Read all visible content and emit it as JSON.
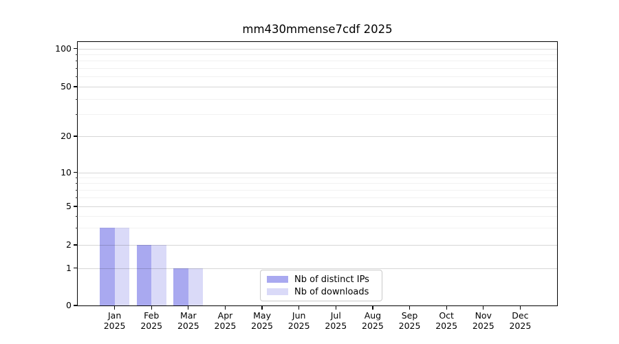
{
  "title": "mm430mmense7cdf 2025",
  "chart_data": {
    "type": "bar",
    "title": "mm430mmense7cdf 2025",
    "x_tick_months": [
      "Jan",
      "Feb",
      "Mar",
      "Apr",
      "May",
      "Jun",
      "Jul",
      "Aug",
      "Sep",
      "Oct",
      "Nov",
      "Dec"
    ],
    "x_tick_year": "2025",
    "series": [
      {
        "name": "Nb of distinct IPs",
        "color": "#a9a9f0",
        "values": [
          3,
          2,
          1,
          0,
          0,
          0,
          0,
          0,
          0,
          0,
          0,
          0
        ]
      },
      {
        "name": "Nb of downloads",
        "color": "#dadaf8",
        "values": [
          3,
          2,
          1,
          0,
          0,
          0,
          0,
          0,
          0,
          0,
          0,
          0
        ]
      }
    ],
    "y_ticks": [
      0,
      1,
      2,
      5,
      10,
      20,
      50,
      100
    ],
    "y_minor_ticks": [
      3,
      4,
      6,
      7,
      8,
      9,
      30,
      40,
      60,
      70,
      80,
      90
    ],
    "y_scale": "log-above-1-linear-below-1",
    "ylim": [
      0,
      100
    ],
    "grid": "horizontal",
    "legend_position": "lower-center-inside"
  }
}
